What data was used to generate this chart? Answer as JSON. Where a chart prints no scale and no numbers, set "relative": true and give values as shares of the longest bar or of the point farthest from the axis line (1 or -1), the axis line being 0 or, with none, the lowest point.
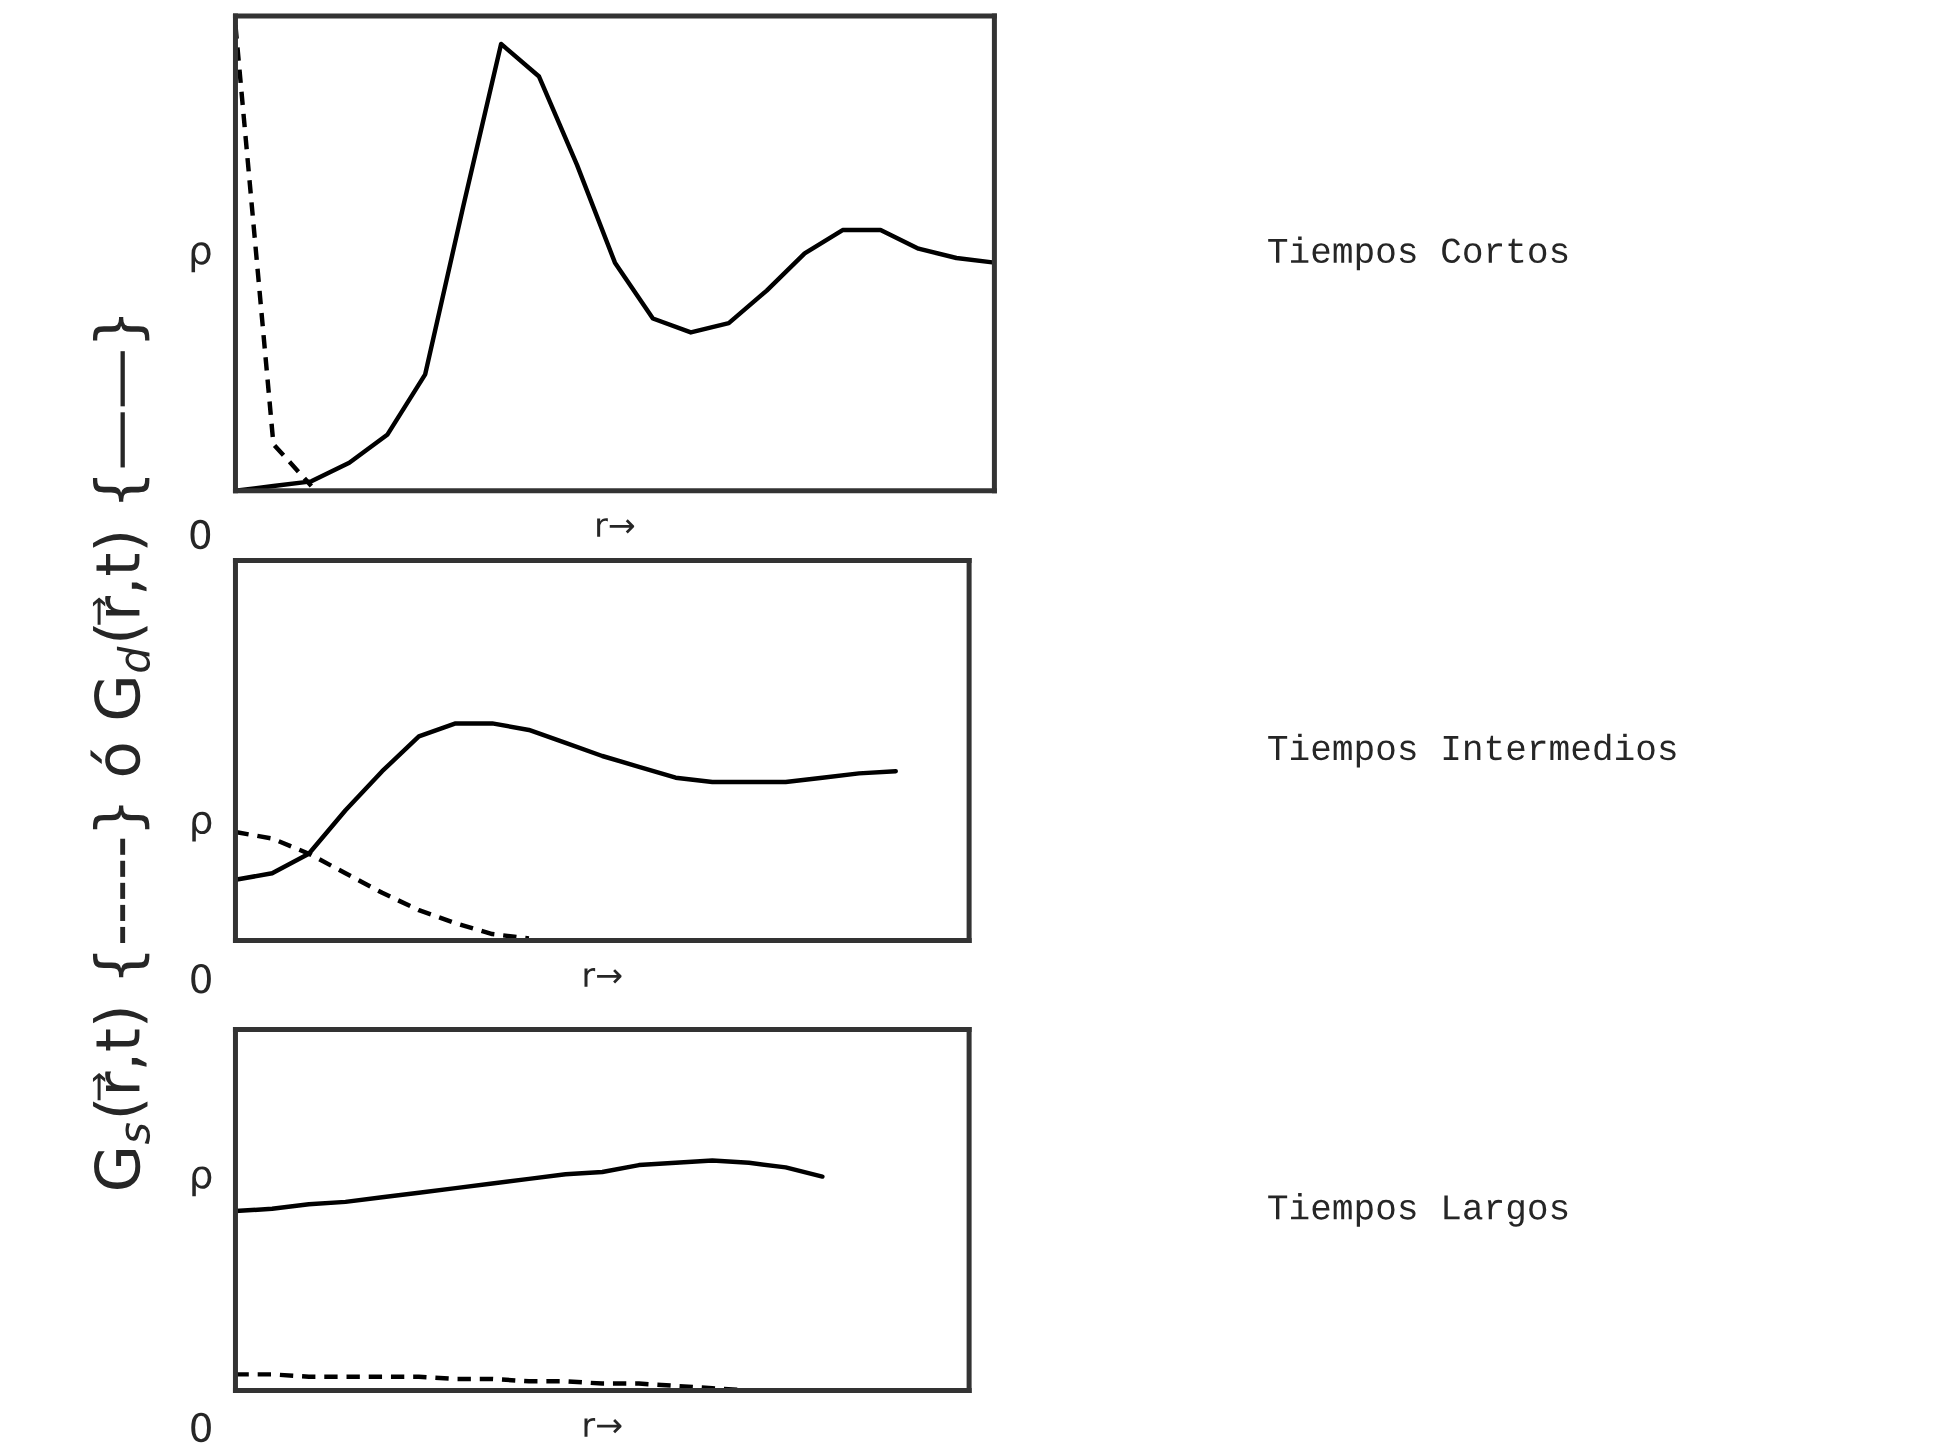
{
  "chart_data": [
    {
      "type": "line",
      "relative": true,
      "categories": [
        null,
        null,
        null,
        null,
        null,
        null,
        null,
        null,
        null,
        null,
        null,
        null,
        null,
        null,
        null,
        null,
        null,
        null,
        null,
        null,
        null
      ],
      "xlabel": "r→",
      "grid": false,
      "legend": false,
      "series": [
        {
          "color": "#000000",
          "line_style": "solid",
          "values": [
            0,
            0.01,
            0.02,
            0.06,
            0.12,
            0.25,
            0.61,
            0.96,
            0.89,
            0.7,
            0.49,
            0.37,
            0.34,
            0.36,
            0.43,
            0.51,
            0.56,
            0.56,
            0.52,
            0.5,
            0.49
          ]
        },
        {
          "color": "#000000",
          "line_style": "dashed",
          "values": [
            1,
            0.1,
            0.01,
            null,
            null,
            null,
            null,
            null,
            null,
            null,
            null,
            null,
            null,
            null,
            null,
            null,
            null,
            null,
            null,
            null,
            null
          ]
        }
      ],
      "annotations": [
        "0",
        "ρ",
        "Tiempos Cortos"
      ]
    },
    {
      "type": "line",
      "relative": true,
      "categories": [
        null,
        null,
        null,
        null,
        null,
        null,
        null,
        null,
        null,
        null,
        null,
        null,
        null,
        null,
        null,
        null,
        null,
        null,
        null,
        null,
        null
      ],
      "xlabel": "r→",
      "ylabel": "G$_{s}$(r⃗,t) {-----} ó G$_{d}$(r⃗,t) {——}",
      "grid": false,
      "legend": false,
      "series": [
        {
          "color": "#000000",
          "line_style": "solid",
          "values": [
            0.28,
            0.31,
            0.4,
            0.6,
            0.78,
            0.94,
            1,
            1,
            0.97,
            0.91,
            0.85,
            0.8,
            0.75,
            0.73,
            0.73,
            0.73,
            0.75,
            0.77,
            0.78,
            null,
            null
          ]
        },
        {
          "color": "#000000",
          "line_style": "dashed",
          "values": [
            0.5,
            0.47,
            0.4,
            0.31,
            0.22,
            0.14,
            0.08,
            0.03,
            0.01,
            null,
            null,
            null,
            null,
            null,
            null,
            null,
            null,
            null,
            null,
            null,
            null
          ]
        }
      ],
      "annotations": [
        "0",
        "ρ",
        "Tiempos Intermedios"
      ]
    },
    {
      "type": "line",
      "relative": true,
      "categories": [
        null,
        null,
        null,
        null,
        null,
        null,
        null,
        null,
        null,
        null,
        null,
        null,
        null,
        null,
        null,
        null,
        null,
        null,
        null,
        null,
        null
      ],
      "xlabel": "r→",
      "grid": false,
      "legend": false,
      "series": [
        {
          "color": "#000000",
          "line_style": "solid",
          "values": [
            0.78,
            0.79,
            0.81,
            0.82,
            0.84,
            0.86,
            0.88,
            0.9,
            0.92,
            0.94,
            0.95,
            0.98,
            0.99,
            1,
            0.99,
            0.97,
            0.93,
            null,
            null,
            null,
            null
          ]
        },
        {
          "color": "#000000",
          "line_style": "dashed",
          "values": [
            0.07,
            0.07,
            0.06,
            0.06,
            0.06,
            0.06,
            0.05,
            0.05,
            0.04,
            0.04,
            0.03,
            0.03,
            0.02,
            0.01,
            0,
            null,
            null,
            null,
            null,
            null,
            null
          ]
        }
      ],
      "annotations": [
        "0",
        "ρ",
        "Tiempos Largos"
      ]
    }
  ]
}
